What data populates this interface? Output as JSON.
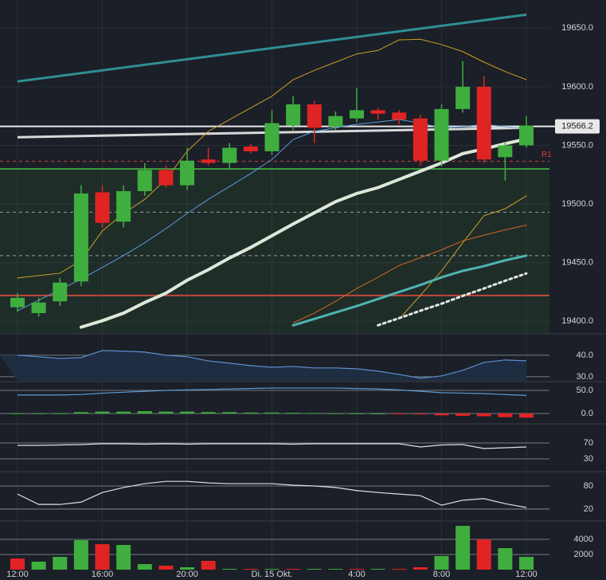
{
  "chart_data": [
    {
      "type": "candlestick",
      "categories": [
        "12:00",
        null,
        null,
        null,
        "16:00",
        null,
        null,
        null,
        "20:00",
        null,
        null,
        null,
        "Di. 15 Okt.",
        null,
        null,
        null,
        "4:00",
        null,
        null,
        null,
        "8:00",
        null,
        null,
        null,
        "12:00"
      ],
      "open": [
        19412,
        19407,
        19417,
        19434,
        19510,
        19485,
        19511,
        19529,
        19516,
        19538,
        19535,
        19549,
        19545,
        19567,
        19585,
        19566,
        19573,
        19580,
        19578,
        19573,
        19537,
        19581,
        19600,
        19540,
        19550
      ],
      "high": [
        19424,
        19420,
        19437,
        19516,
        19516,
        19516,
        19535,
        19533,
        19548,
        19548,
        19552,
        19551,
        19580,
        19592,
        19588,
        19579,
        19599,
        19582,
        19580,
        19576,
        19585,
        19622,
        19609,
        19553,
        19575
      ],
      "low": [
        19408,
        19404,
        19413,
        19430,
        19480,
        19480,
        19507,
        19514,
        19512,
        19533,
        19530,
        19543,
        19542,
        19563,
        19552,
        19563,
        19570,
        19572,
        19568,
        19533,
        19532,
        19578,
        19535,
        19520,
        19548
      ],
      "close": [
        19420,
        19416,
        19433,
        19509,
        19484,
        19511,
        19529,
        19516,
        19537,
        19535,
        19548,
        19545,
        19569,
        19585,
        19565,
        19575,
        19580,
        19577,
        19572,
        19537,
        19581,
        19600,
        19538,
        19550,
        19567
      ],
      "up_color": "#3fae3f",
      "down_color": "#e02424",
      "ylim": [
        19390,
        19674
      ],
      "yticks": [
        {
          "value": 19400,
          "label": "19400.0"
        },
        {
          "value": 19450,
          "label": "19450.0"
        },
        {
          "value": 19500,
          "label": "19500.0"
        },
        {
          "value": 19550,
          "label": "19550.0"
        },
        {
          "value": 19600,
          "label": "19600.0"
        },
        {
          "value": 19650,
          "label": "19650.0"
        }
      ],
      "grid": true,
      "levels": [
        {
          "value": 19530,
          "color": "#3c9a3c",
          "fill_below": "rgba(60,140,60,0.13)"
        },
        {
          "value": 19422,
          "color": "#c0453a"
        },
        {
          "value": 19536.5,
          "color": "#d04040",
          "dashed": true,
          "label": "R1"
        },
        {
          "value": 19493,
          "color": "#9aa0a6",
          "dashed": true
        },
        {
          "value": 19456,
          "color": "#9aa0a6",
          "dashed": true
        },
        {
          "value": 19566.2,
          "color": "#e8e8e8",
          "tag": true
        }
      ],
      "trendlines": [
        {
          "color": "#2f8f95",
          "values": [
            19604.5,
            19661.5
          ]
        },
        {
          "color": "#d8d8d8",
          "values": [
            19557,
            19565
          ]
        }
      ],
      "lines": [
        {
          "color": "#c9a227",
          "width": 1,
          "values": [
            19437,
            19439,
            19441,
            19452,
            19477,
            19492,
            19504,
            19521,
            19545,
            19562,
            19572,
            19582,
            19592,
            19606,
            19614,
            19621,
            19628,
            19631,
            19640,
            19640.5,
            19636,
            19630,
            19621,
            19613,
            19606
          ]
        },
        {
          "color": "#c9a227",
          "width": 1,
          "values": [
            null,
            null,
            null,
            null,
            null,
            null,
            null,
            null,
            null,
            null,
            null,
            null,
            null,
            null,
            null,
            null,
            null,
            null,
            19402,
            19422,
            19443,
            19467,
            19490,
            19496,
            19507
          ]
        },
        {
          "color": "#5b9bd5",
          "width": 1,
          "values": [
            19409,
            19418,
            19427,
            19436,
            19446,
            19456,
            19467,
            19479,
            19492,
            19504,
            19515,
            19526,
            19538,
            19555,
            19562,
            19565,
            19568,
            19570,
            19572,
            19569,
            19565,
            19566,
            19568,
            19566,
            19564
          ]
        },
        {
          "color": "#d2691e",
          "width": 1,
          "values": [
            null,
            null,
            null,
            null,
            null,
            null,
            null,
            null,
            null,
            null,
            null,
            null,
            null,
            19398.6,
            19407,
            19417,
            19428,
            19437.5,
            19447.6,
            19454.3,
            19461,
            19468.6,
            19473.4,
            19478,
            19482
          ]
        },
        {
          "color": "#4fb3b0",
          "width": 3,
          "values": [
            null,
            null,
            null,
            null,
            null,
            null,
            null,
            null,
            null,
            null,
            null,
            null,
            null,
            19396.6,
            19402,
            19407.5,
            19413,
            19419,
            19425,
            19431,
            19437.5,
            19443,
            19447,
            19452,
            19456
          ]
        },
        {
          "color": "#e6e6e6",
          "width": 3,
          "dashed": true,
          "values": [
            null,
            null,
            null,
            null,
            null,
            null,
            null,
            null,
            null,
            null,
            null,
            null,
            null,
            null,
            null,
            null,
            null,
            19396.6,
            19402.7,
            19409,
            19415,
            19421.7,
            19428,
            19434.6,
            19440.8
          ]
        },
        {
          "color": "#dfe8d8",
          "width": 4,
          "values": [
            null,
            null,
            null,
            19395,
            19400.5,
            19407,
            19416,
            19424,
            19435,
            19444,
            19454,
            19463,
            19473,
            19483,
            19492.5,
            19502,
            19509,
            19514,
            19521,
            19528,
            19535,
            19543,
            19547,
            19551.5,
            19555.5
          ]
        }
      ]
    },
    {
      "type": "line",
      "ylim": [
        28.1,
        49.6
      ],
      "yticks": [
        {
          "value": 30,
          "label": "30.0"
        },
        {
          "value": 40,
          "label": "40.0"
        }
      ],
      "fill": "#1f2d42",
      "series": [
        {
          "color": "#5b8fd0",
          "values": [
            40,
            39.3,
            38.5,
            38.9,
            42.2,
            41.9,
            41.5,
            40,
            39.3,
            37.4,
            36.3,
            35.2,
            34.4,
            34.8,
            34.1,
            34.1,
            33.7,
            32.6,
            31.1,
            29.3,
            30.4,
            33,
            36.7,
            37.8,
            37.4
          ]
        }
      ]
    },
    {
      "type": "histogram",
      "ylim": [
        -19,
        67.2
      ],
      "yticks": [
        {
          "value": 0,
          "label": "0.0"
        },
        {
          "value": 50,
          "label": "50.0"
        }
      ],
      "up_color": "#3fae3f",
      "down_color": "#e02424",
      "values": [
        0.5,
        0.5,
        0.5,
        3,
        4,
        4,
        5,
        4,
        4,
        3,
        3,
        2,
        2,
        1.5,
        1,
        0.5,
        0.3,
        0,
        -0.5,
        -2,
        -4,
        -5,
        -6,
        -8,
        -9
      ],
      "series": [
        {
          "color": "#5b9bd5",
          "values": [
            40,
            40,
            40,
            41,
            44,
            46,
            48,
            50,
            51,
            52,
            53,
            54,
            55,
            55,
            55,
            55,
            54,
            53,
            51,
            48,
            45,
            44,
            43,
            41,
            39
          ]
        }
      ]
    },
    {
      "type": "line",
      "ylim": [
        2,
        112
      ],
      "yticks": [
        30,
        70
      ],
      "series": [
        {
          "color": "#e0e0e0",
          "values": [
            64,
            64,
            65,
            66,
            68,
            68,
            67,
            68,
            67,
            68,
            68,
            68,
            68,
            67,
            68,
            68,
            68,
            68,
            68,
            60,
            65,
            66,
            56,
            58,
            60
          ]
        }
      ]
    },
    {
      "type": "line",
      "ylim": [
        -7,
        111
      ],
      "yticks": [
        20,
        80
      ],
      "series": [
        {
          "color": "#e0e0e0",
          "values": [
            59,
            32,
            32,
            38,
            63,
            76,
            86,
            92,
            92,
            88,
            86,
            86,
            86,
            82,
            80,
            76,
            68,
            63,
            59,
            55,
            30,
            43,
            47,
            34,
            24
          ]
        }
      ]
    },
    {
      "type": "bar",
      "ylim": [
        0,
        6316
      ],
      "yticks": [
        2000,
        4000
      ],
      "values": [
        1474,
        1053,
        1684,
        3895,
        3368,
        3263,
        737,
        527,
        316,
        1158,
        105,
        105,
        100,
        100,
        100,
        100,
        100,
        100,
        100,
        316,
        1790,
        5790,
        4000,
        2842,
        1684
      ],
      "colors": [
        "#e02424",
        "#3fae3f",
        "#3fae3f",
        "#3fae3f",
        "#e02424",
        "#3fae3f",
        "#3fae3f",
        "#e02424",
        "#3fae3f",
        "#e02424",
        "#3fae3f",
        "#e02424",
        "#3fae3f",
        "#e02424",
        "#3fae3f",
        "#3fae3f",
        "#e02424",
        "#3fae3f",
        "#e02424",
        "#e02424",
        "#3fae3f",
        "#3fae3f",
        "#e02424",
        "#3fae3f",
        "#3fae3f"
      ]
    }
  ]
}
